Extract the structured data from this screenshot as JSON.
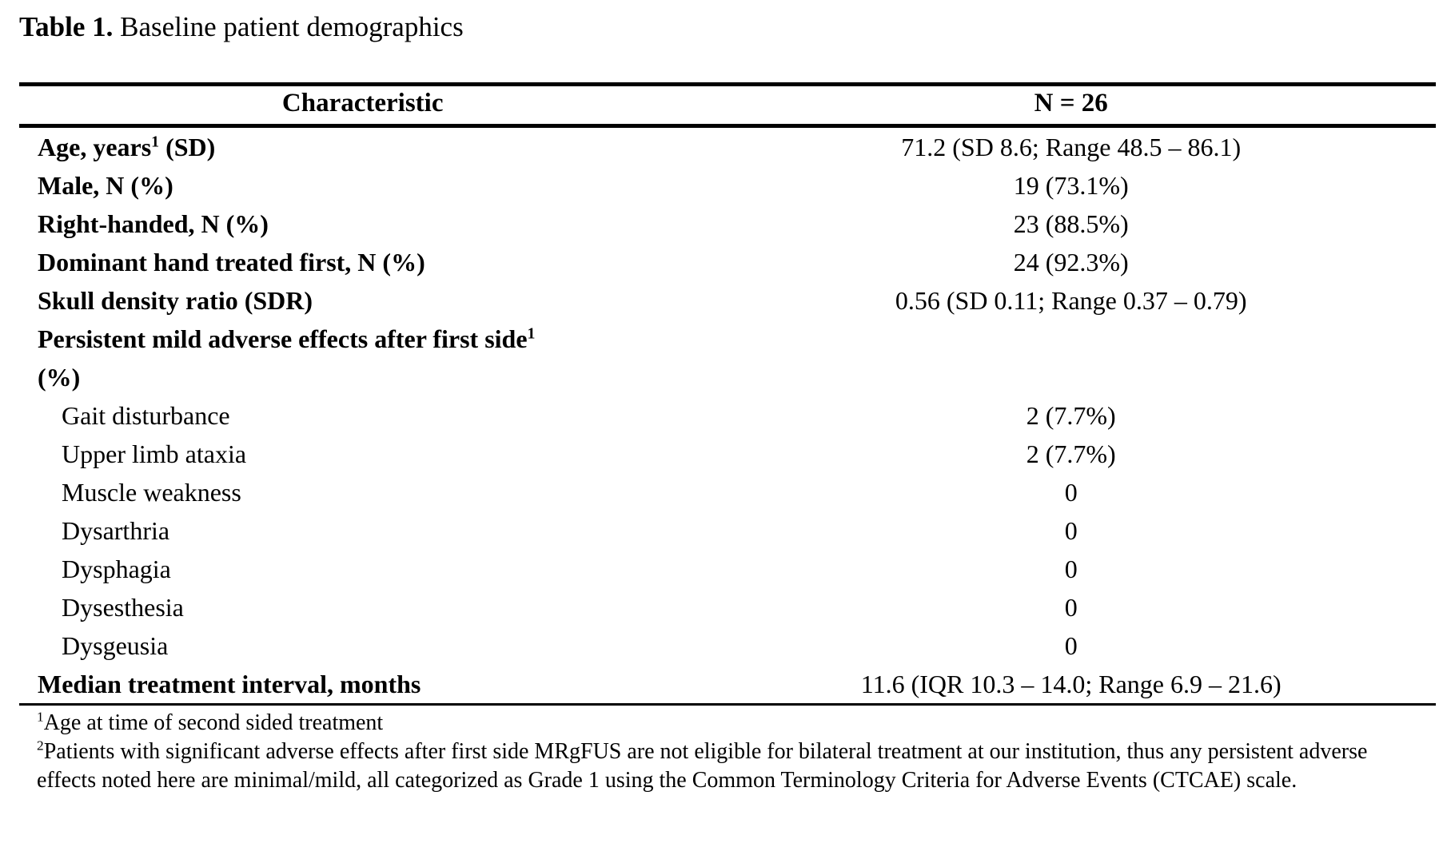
{
  "title": {
    "label": "Table 1.",
    "text": "Baseline patient demographics"
  },
  "table": {
    "headers": {
      "characteristic": "Characteristic",
      "n": "N = 26"
    },
    "rows": [
      {
        "pre": "Age, years",
        "sup": "1",
        "post": " (SD)",
        "line2": "",
        "bold": true,
        "indent": false,
        "value": "71.2 (SD 8.6; Range 48.5 – 86.1)"
      },
      {
        "pre": "Male, N (%)",
        "sup": "",
        "post": "",
        "line2": "",
        "bold": true,
        "indent": false,
        "value": "19 (73.1%)"
      },
      {
        "pre": "Right-handed, N (%)",
        "sup": "",
        "post": "",
        "line2": "",
        "bold": true,
        "indent": false,
        "value": "23 (88.5%)"
      },
      {
        "pre": "Dominant hand treated first, N (%)",
        "sup": "",
        "post": "",
        "line2": "",
        "bold": true,
        "indent": false,
        "value": "24 (92.3%)"
      },
      {
        "pre": "Skull density ratio (SDR)",
        "sup": "",
        "post": "",
        "line2": "",
        "bold": true,
        "indent": false,
        "value": "0.56 (SD 0.11; Range 0.37 – 0.79)"
      },
      {
        "pre": "Persistent mild adverse effects after first side",
        "sup": "1",
        "post": "",
        "line2": "(%)",
        "bold": true,
        "indent": false,
        "value": ""
      },
      {
        "pre": "Gait disturbance",
        "sup": "",
        "post": "",
        "line2": "",
        "bold": false,
        "indent": true,
        "value": "2 (7.7%)"
      },
      {
        "pre": "Upper limb ataxia",
        "sup": "",
        "post": "",
        "line2": "",
        "bold": false,
        "indent": true,
        "value": "2 (7.7%)"
      },
      {
        "pre": "Muscle weakness",
        "sup": "",
        "post": "",
        "line2": "",
        "bold": false,
        "indent": true,
        "value": "0"
      },
      {
        "pre": "Dysarthria",
        "sup": "",
        "post": "",
        "line2": "",
        "bold": false,
        "indent": true,
        "value": "0"
      },
      {
        "pre": "Dysphagia",
        "sup": "",
        "post": "",
        "line2": "",
        "bold": false,
        "indent": true,
        "value": "0"
      },
      {
        "pre": "Dysesthesia",
        "sup": "",
        "post": "",
        "line2": "",
        "bold": false,
        "indent": true,
        "value": "0"
      },
      {
        "pre": "Dysgeusia",
        "sup": "",
        "post": "",
        "line2": "",
        "bold": false,
        "indent": true,
        "value": "0"
      },
      {
        "pre": "Median treatment interval, months",
        "sup": "",
        "post": "",
        "line2": "",
        "bold": true,
        "indent": false,
        "value": "11.6 (IQR 10.3 – 14.0; Range 6.9 – 21.6)"
      }
    ]
  },
  "footnotes": [
    {
      "sup": "1",
      "text": "Age at time of second sided treatment"
    },
    {
      "sup": "2",
      "text": "Patients with significant adverse effects after first side MRgFUS are not eligible for bilateral treatment at our institution, thus any persistent adverse effects noted here are minimal/mild, all categorized as Grade 1 using the Common Terminology Criteria for Adverse Events (CTCAE) scale."
    }
  ]
}
